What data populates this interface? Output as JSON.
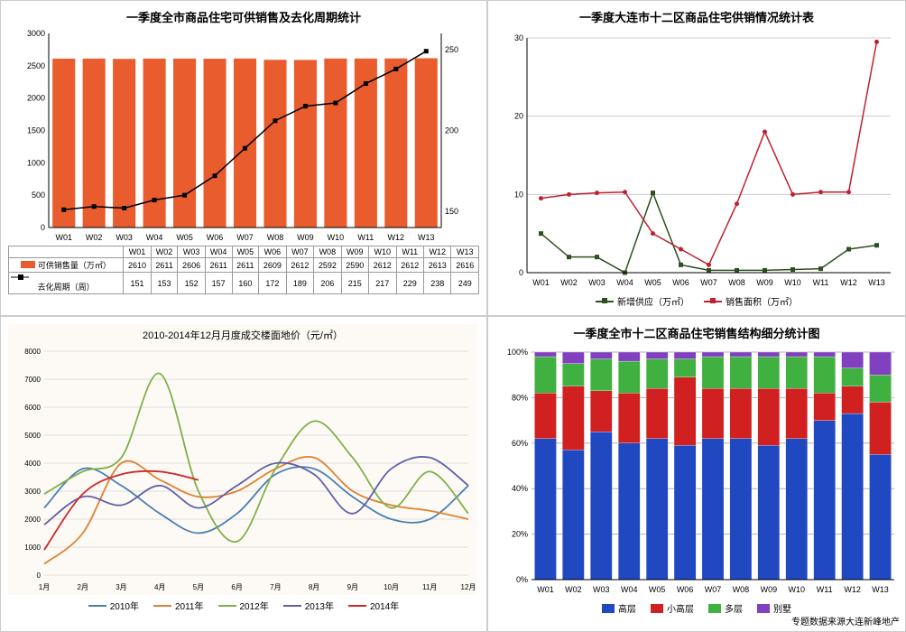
{
  "panel1": {
    "title": "一季度全市商品住宅可供销售及去化周期统计",
    "type": "bar+line",
    "categories": [
      "W01",
      "W02",
      "W03",
      "W04",
      "W05",
      "W06",
      "W07",
      "W08",
      "W09",
      "W10",
      "W11",
      "W12",
      "W13"
    ],
    "bars": {
      "label": "可供销售量（万㎡）",
      "color": "#e85c2e",
      "values": [
        2610,
        2611,
        2606,
        2611,
        2611,
        2609,
        2612,
        2592,
        2590,
        2612,
        2612,
        2613,
        2616
      ],
      "ylim": [
        0,
        3000
      ],
      "ytick_step": 500
    },
    "line": {
      "label": "去化周期（周）",
      "color": "#000000",
      "values": [
        151,
        153,
        152,
        157,
        160,
        172,
        189,
        206,
        215,
        217,
        229,
        238,
        249
      ],
      "ylim": [
        140,
        260
      ],
      "tick_positions": [
        150,
        200,
        250
      ]
    },
    "background_color": "#ffffff",
    "axis_color": "#000000",
    "label_fontsize": 10,
    "title_fontsize": 13
  },
  "panel2": {
    "title": "一季度大连市十二区商品住宅供销情况统计表",
    "type": "line",
    "categories": [
      "W01",
      "W02",
      "W03",
      "W04",
      "W05",
      "W06",
      "W07",
      "W08",
      "W09",
      "W10",
      "W11",
      "W12",
      "W13"
    ],
    "series": [
      {
        "name": "新增供应（万㎡）",
        "color": "#2d5020",
        "marker": "square",
        "values": [
          5,
          2,
          2,
          0,
          10.2,
          1,
          0.3,
          0.3,
          0.3,
          0.4,
          0.5,
          3,
          3.5
        ]
      },
      {
        "name": "销售面积（万㎡）",
        "color": "#c02030",
        "marker": "circle",
        "values": [
          9.5,
          10,
          10.2,
          10.3,
          5,
          3,
          1,
          8.8,
          18,
          10,
          10.3,
          10.3,
          29.5
        ]
      }
    ],
    "ylim": [
      0,
      30
    ],
    "ytick_step": 10,
    "grid_color": "#cccccc",
    "background_color": "#ffffff",
    "title_fontsize": 13
  },
  "panel3": {
    "title": "2010-2014年12月月度成交楼面地价（元/㎡）",
    "type": "line",
    "categories": [
      "1月",
      "2月",
      "3月",
      "4月",
      "5月",
      "6月",
      "7月",
      "8月",
      "9月",
      "10月",
      "11月",
      "12月"
    ],
    "ylim": [
      0,
      8000
    ],
    "ytick_step": 1000,
    "grid_color": "#dddddd",
    "background_color": "#fdfaf5",
    "series": [
      {
        "name": "2010年",
        "color": "#4a7fb5",
        "values": [
          2400,
          3800,
          3200,
          2200,
          1500,
          2200,
          3600,
          3800,
          2800,
          2000,
          2000,
          3200
        ]
      },
      {
        "name": "2011年",
        "color": "#e08030",
        "values": [
          400,
          1500,
          4000,
          3400,
          2800,
          3000,
          3800,
          4200,
          3000,
          2500,
          2300,
          2000
        ]
      },
      {
        "name": "2012年",
        "color": "#7fb048",
        "values": [
          2900,
          3700,
          4200,
          7200,
          3000,
          1200,
          3800,
          5500,
          4200,
          2400,
          3700,
          2200
        ]
      },
      {
        "name": "2013年",
        "color": "#6060a8",
        "values": [
          1800,
          2800,
          2500,
          3200,
          2400,
          3200,
          4000,
          3600,
          2200,
          3800,
          4200,
          3200
        ]
      },
      {
        "name": "2014年",
        "color": "#d02828",
        "values": [
          900,
          2900,
          3600,
          3700,
          3400,
          null,
          null,
          null,
          null,
          null,
          null,
          null
        ]
      }
    ],
    "title_fontsize": 11
  },
  "panel4": {
    "title": "一季度全市十二区商品住宅销售结构细分统计图",
    "type": "stacked-bar-100",
    "categories": [
      "W01",
      "W02",
      "W03",
      "W04",
      "W05",
      "W06",
      "W07",
      "W08",
      "W09",
      "W10",
      "W11",
      "W12",
      "W13"
    ],
    "layers": [
      {
        "name": "高层",
        "color": "#2048c0",
        "values": [
          62,
          57,
          65,
          60,
          62,
          59,
          62,
          62,
          59,
          62,
          70,
          73,
          55
        ]
      },
      {
        "name": "小高层",
        "color": "#d02020",
        "values": [
          20,
          28,
          18,
          22,
          22,
          30,
          22,
          22,
          25,
          22,
          12,
          12,
          23
        ]
      },
      {
        "name": "多层",
        "color": "#40b040",
        "values": [
          16,
          10,
          14,
          14,
          13,
          8,
          14,
          14,
          14,
          14,
          16,
          8,
          12
        ]
      },
      {
        "name": "别墅",
        "color": "#8040c0",
        "values": [
          2,
          5,
          3,
          4,
          3,
          3,
          2,
          2,
          2,
          2,
          2,
          7,
          10
        ]
      }
    ],
    "ylim": [
      0,
      100
    ],
    "ytick_step": 20,
    "grid_color": "#b0b0b0",
    "background_color": "#ffffff",
    "title_fontsize": 13
  },
  "credit": "专题数据来源大连新峰地产"
}
